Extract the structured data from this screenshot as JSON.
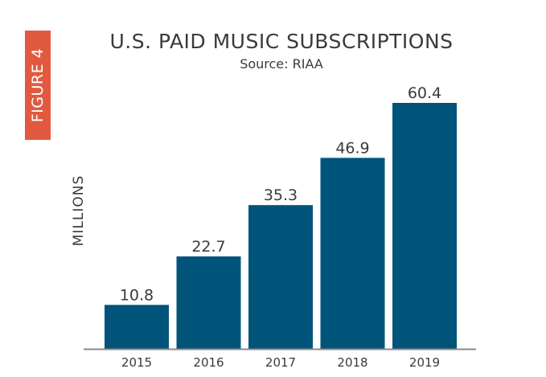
{
  "badge": "FIGURE 4",
  "chart_data": {
    "type": "bar",
    "title": "U.S. PAID MUSIC SUBSCRIPTIONS",
    "subtitle": "Source: RIAA",
    "xlabel": "",
    "ylabel": "MILLIONS",
    "categories": [
      "2015",
      "2016",
      "2017",
      "2018",
      "2019"
    ],
    "values": [
      10.8,
      22.7,
      35.3,
      46.9,
      60.4
    ],
    "data_labels": [
      "10.8",
      "22.7",
      "35.3",
      "46.9",
      "60.4"
    ],
    "ylim": [
      0,
      60.4
    ],
    "grid": false,
    "bar_color": "#00547a",
    "axis_color": "#8a8a8a",
    "badge_color": "#e15a40"
  }
}
